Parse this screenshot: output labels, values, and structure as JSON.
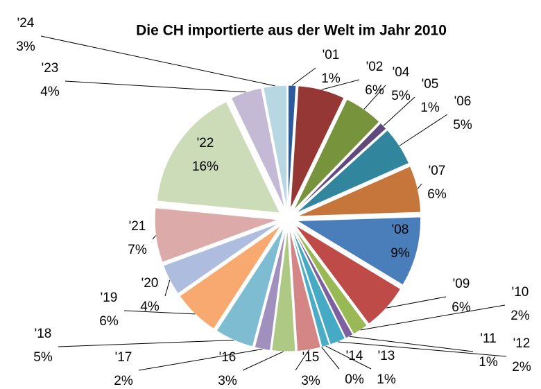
{
  "chart_data": {
    "type": "pie",
    "title": "Die CH importierte aus der Welt im Jahr 2010",
    "categories": [
      "'01",
      "'02",
      "'04",
      "'05",
      "'06",
      "'07",
      "'08",
      "'09",
      "'10",
      "'11",
      "'12",
      "'13",
      "'14",
      "'15",
      "'16",
      "'17",
      "'18",
      "'19",
      "'20",
      "'21",
      "'22",
      "'23",
      "'24"
    ],
    "values": [
      1,
      6,
      5,
      1,
      5,
      6,
      9,
      6,
      2,
      1,
      2,
      1,
      0,
      3,
      3,
      2,
      5,
      6,
      4,
      7,
      16,
      4,
      3
    ],
    "value_labels": [
      "1%",
      "6%",
      "5%",
      "1%",
      "5%",
      "6%",
      "9%",
      "6%",
      "2%",
      "1%",
      "2%",
      "1%",
      "0%",
      "3%",
      "3%",
      "2%",
      "5%",
      "6%",
      "4%",
      "7%",
      "16%",
      "4%",
      "3%"
    ],
    "colors": [
      "#2c5a9a",
      "#953735",
      "#77933c",
      "#604a7b",
      "#31859c",
      "#c6763a",
      "#4a7ebb",
      "#be4b48",
      "#98b954",
      "#7d60a0",
      "#46aac5",
      "#4bacc6",
      "#f79646",
      "#d38685",
      "#aec984",
      "#a090bd",
      "#7dbcd1",
      "#f8a96f",
      "#aebce0",
      "#ddaaaa",
      "#cddcb8",
      "#c5bad6",
      "#b7d7e2"
    ]
  }
}
